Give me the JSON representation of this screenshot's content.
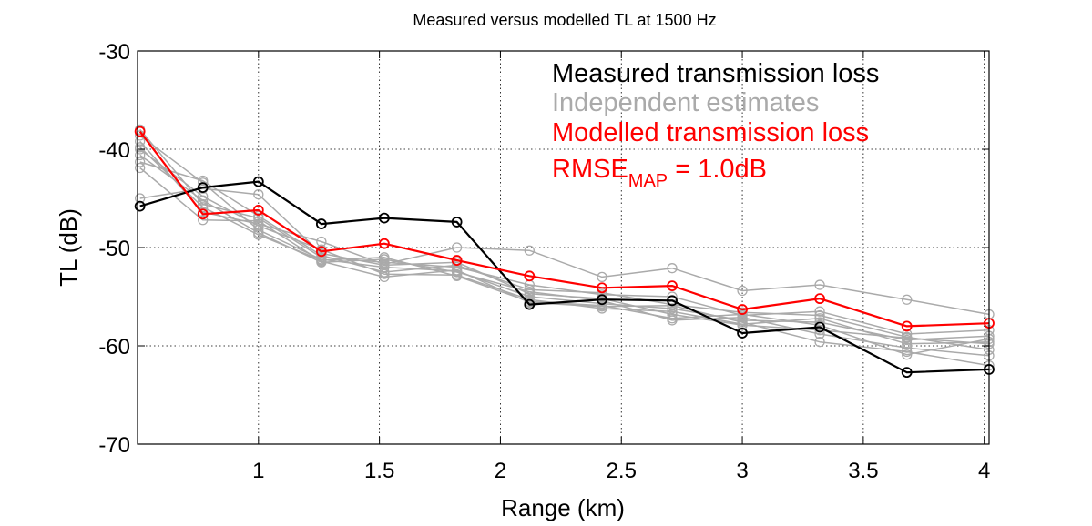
{
  "colors": {
    "measured": "#000000",
    "estimates": "#aaaaaa",
    "modelled": "#ff0000",
    "grid": "#000000"
  },
  "legend": {
    "measured": "Measured transmission loss",
    "estimates": "Independent estimates",
    "modelled": "Modelled transmission loss",
    "rmse_main": "RMSE",
    "rmse_sub": "MAP",
    "rmse_value": " = 1.0dB"
  },
  "chart_data": {
    "type": "line",
    "title": "Measured versus modelled TL at 1500 Hz",
    "xlabel": "Range (km)",
    "ylabel": "TL (dB)",
    "xlim": [
      0.5,
      4.02
    ],
    "ylim": [
      -70,
      -30
    ],
    "xticks": [
      1,
      1.5,
      2,
      2.5,
      3,
      3.5,
      4
    ],
    "xtick_labels": [
      "1",
      "1.5",
      "2",
      "2.5",
      "3",
      "3.5",
      "4"
    ],
    "yticks": [
      -30,
      -40,
      -50,
      -60,
      -70
    ],
    "ytick_labels": [
      "-30",
      "-40",
      "-50",
      "-60",
      "-70"
    ],
    "grid": true,
    "legend_position": "top-right",
    "x": [
      0.51,
      0.77,
      1.0,
      1.26,
      1.52,
      1.82,
      2.12,
      2.42,
      2.71,
      3.0,
      3.32,
      3.68,
      4.02
    ],
    "series": [
      {
        "name": "Measured transmission loss",
        "role": "measured",
        "values": [
          -45.8,
          -43.9,
          -43.3,
          -47.6,
          -47.0,
          -47.4,
          -55.8,
          -55.3,
          -55.4,
          -58.7,
          -58.1,
          -62.7,
          -62.4
        ]
      },
      {
        "name": "Modelled transmission loss",
        "role": "modelled",
        "values": [
          -38.2,
          -46.6,
          -46.2,
          -50.4,
          -49.6,
          -51.3,
          -52.9,
          -54.1,
          -53.9,
          -56.3,
          -55.2,
          -58.0,
          -57.7
        ]
      },
      {
        "role": "estimate",
        "values": [
          -38.0,
          -45.6,
          -47.0,
          -51.0,
          -51.5,
          -52.0,
          -53.8,
          -54.8,
          -55.0,
          -56.9,
          -56.5,
          -58.8,
          -58.4
        ]
      },
      {
        "role": "estimate",
        "values": [
          -38.6,
          -43.4,
          -48.2,
          -51.2,
          -52.0,
          -52.4,
          -55.0,
          -55.7,
          -56.2,
          -57.4,
          -57.6,
          -59.4,
          -59.0
        ]
      },
      {
        "role": "estimate",
        "values": [
          -39.2,
          -46.4,
          -47.6,
          -49.4,
          -51.7,
          -50.0,
          -50.3,
          -53.0,
          -52.1,
          -54.4,
          -53.8,
          -55.3,
          -56.8
        ]
      },
      {
        "role": "estimate",
        "values": [
          -40.0,
          -44.8,
          -47.8,
          -50.2,
          -52.7,
          -52.8,
          -55.3,
          -56.2,
          -56.5,
          -57.8,
          -57.2,
          -59.8,
          -59.6
        ]
      },
      {
        "role": "estimate",
        "values": [
          -40.6,
          -45.2,
          -48.5,
          -51.5,
          -51.2,
          -52.5,
          -54.5,
          -55.4,
          -57.4,
          -57.1,
          -58.8,
          -60.2,
          -61.0
        ]
      },
      {
        "role": "estimate",
        "values": [
          -41.3,
          -43.2,
          -46.8,
          -50.8,
          -52.5,
          -51.8,
          -54.3,
          -54.6,
          -55.8,
          -56.6,
          -56.9,
          -59.1,
          -60.4
        ]
      },
      {
        "role": "estimate",
        "values": [
          -41.9,
          -47.2,
          -47.3,
          -51.4,
          -53.0,
          -52.3,
          -55.6,
          -56.0,
          -55.9,
          -57.6,
          -59.6,
          -60.6,
          -62.0
        ]
      },
      {
        "role": "estimate",
        "values": [
          -45.0,
          -44.0,
          -44.6,
          -50.6,
          -51.8,
          -51.5,
          -54.7,
          -55.2,
          -56.8,
          -57.9,
          -58.4,
          -59.2,
          -59.8
        ]
      },
      {
        "role": "estimate",
        "values": [
          -39.8,
          -45.9,
          -48.7,
          -51.3,
          -51.0,
          -52.9,
          -55.5,
          -55.9,
          -57.2,
          -56.8,
          -57.9,
          -60.9,
          -59.3
        ]
      }
    ]
  }
}
